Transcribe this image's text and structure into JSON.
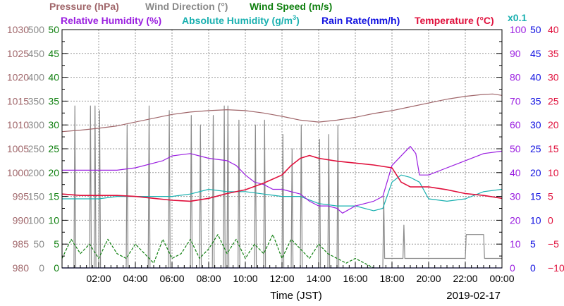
{
  "chart_data": {
    "type": "line",
    "date": "2019-02-17",
    "xlabel": "Time (JST)",
    "x_ticks": [
      "02:00",
      "04:00",
      "06:00",
      "08:00",
      "10:00",
      "12:00",
      "14:00",
      "16:00",
      "18:00",
      "20:00",
      "22:00",
      "00:00"
    ],
    "grid": true,
    "legend": {
      "row1": [
        {
          "text": "Pressure (hPa)",
          "color": "#a0666a"
        },
        {
          "text": "Wind Direction (°)",
          "color": "#8a8a8a"
        },
        {
          "text": "Wind Speed (m/s)",
          "color": "#108010"
        }
      ],
      "row2": [
        {
          "text": "Relative Humidity (%)",
          "color": "#9a1ee0"
        },
        {
          "text": "Absolute Humidity (g/m",
          "sup": "3",
          "tail": ")",
          "color": "#1ab0b0"
        },
        {
          "text": "Rain Rate(mm/h)",
          "color": "#1010e0"
        },
        {
          "text": "Temperature (°C)",
          "color": "#e0103c"
        },
        {
          "text": "x0.1",
          "color": "#1ab0b0"
        }
      ]
    },
    "axes": {
      "pressure": {
        "name": "Pressure (hPa)",
        "color": "#a0666a",
        "range": [
          980,
          1030
        ],
        "ticks": [
          "1030",
          "1025",
          "1020",
          "1015",
          "1010",
          "1005",
          "1000",
          "995",
          "990",
          "985",
          "980"
        ]
      },
      "wind_direction": {
        "name": "Wind Direction (°)",
        "color": "#8a8a8a",
        "range": [
          0,
          500
        ],
        "ticks": [
          "500",
          "450",
          "400",
          "350",
          "300",
          "250",
          "200",
          "150",
          "100",
          "50",
          "0"
        ]
      },
      "wind_speed": {
        "name": "Wind Speed (m/s)",
        "color": "#108010",
        "range": [
          0,
          50
        ],
        "ticks": [
          "50",
          "45",
          "40",
          "35",
          "30",
          "25",
          "20",
          "15",
          "10",
          "5",
          "0"
        ]
      },
      "relative_humidity": {
        "name": "Relative Humidity (%)",
        "color": "#9a1ee0",
        "range": [
          0,
          100
        ],
        "ticks": [
          "100",
          "90",
          "80",
          "70",
          "60",
          "50",
          "40",
          "30",
          "20",
          "10",
          "0"
        ]
      },
      "rain_rate": {
        "name": "Rain Rate(mm/h)",
        "color": "#1010e0",
        "range": [
          0,
          50
        ],
        "ticks": [
          "50",
          "45",
          "40",
          "35",
          "30",
          "25",
          "20",
          "15",
          "10",
          "5",
          "0"
        ]
      },
      "temperature": {
        "name": "Temperature (°C)",
        "color": "#e0103c",
        "range": [
          -10,
          40
        ],
        "ticks": [
          "40",
          "35",
          "30",
          "25",
          "20",
          "15",
          "10",
          "5",
          "0",
          "−5",
          "−10"
        ]
      }
    },
    "x_range_hours": [
      0,
      24
    ],
    "series": [
      {
        "name": "Pressure (hPa)",
        "color": "#a0666a",
        "axis": "pressure",
        "x": [
          0,
          1,
          2,
          3,
          4,
          5,
          6,
          7,
          8,
          9,
          10,
          11,
          12,
          13,
          14,
          15,
          16,
          17,
          18,
          19,
          20,
          21,
          22,
          23,
          23.5,
          24
        ],
        "y": [
          1008.6,
          1008.9,
          1009.3,
          1009.8,
          1010.6,
          1011.4,
          1012.2,
          1012.7,
          1013.0,
          1013.2,
          1013.0,
          1012.5,
          1011.8,
          1011.0,
          1010.6,
          1011.0,
          1011.6,
          1012.4,
          1013.0,
          1013.8,
          1014.6,
          1015.4,
          1016.0,
          1016.4,
          1016.5,
          1016.2
        ]
      },
      {
        "name": "Relative Humidity (%)",
        "color": "#9a1ee0",
        "axis": "relative_humidity",
        "x": [
          0,
          1,
          2,
          3,
          4,
          5,
          5.5,
          6,
          7,
          8,
          9,
          9.5,
          10,
          10.5,
          11,
          11.5,
          12,
          13,
          13.5,
          14,
          14.5,
          15,
          15.3,
          16,
          17,
          17.5,
          18,
          18.5,
          19,
          19.3,
          19.5,
          20,
          21,
          22,
          23,
          24
        ],
        "y": [
          41,
          41,
          41,
          41,
          42,
          44,
          45,
          47,
          48,
          46,
          45,
          43,
          39,
          36,
          35,
          33,
          33,
          31,
          28,
          26,
          26,
          25,
          23,
          26,
          28,
          30,
          43,
          47,
          51,
          48,
          39,
          39,
          42,
          45,
          48,
          49
        ]
      },
      {
        "name": "Absolute Humidity (g/m3) x0.1",
        "color": "#1ab0b0",
        "axis": "relative_humidity",
        "x": [
          0,
          1,
          2,
          3,
          4,
          5,
          6,
          7,
          8,
          9,
          10,
          11,
          12,
          13,
          14,
          15,
          16,
          17,
          17.5,
          18,
          18.5,
          19,
          19.5,
          20,
          21,
          22,
          23,
          24
        ],
        "y": [
          29,
          29,
          29,
          30,
          30,
          30,
          30,
          31,
          33,
          32,
          32,
          31,
          30,
          30,
          27,
          26,
          26,
          24,
          25,
          36,
          39,
          38,
          36,
          29,
          28,
          29,
          32,
          33
        ]
      },
      {
        "name": "Temperature (°C)",
        "color": "#e0103c",
        "axis": "temperature",
        "x": [
          0,
          1,
          2,
          3,
          4,
          5,
          6,
          7,
          8,
          9,
          10,
          11,
          12,
          12.5,
          13,
          13.5,
          14,
          15,
          16,
          17,
          18,
          18.5,
          19,
          20,
          21,
          22,
          23,
          24
        ],
        "y": [
          5.5,
          5.2,
          5.2,
          5.2,
          5.0,
          4.6,
          4.2,
          4.0,
          4.6,
          5.6,
          6.4,
          7.8,
          9.5,
          11.5,
          13.0,
          13.6,
          13.0,
          12.4,
          12.0,
          11.6,
          11.0,
          8.0,
          7.0,
          7.0,
          6.4,
          5.6,
          5.2,
          4.6
        ]
      },
      {
        "name": "Wind Speed (m/s)",
        "color": "#108010",
        "axis": "wind_speed",
        "x": [
          0,
          0.5,
          1,
          1.5,
          2,
          2.5,
          3,
          3.5,
          4,
          4.5,
          5,
          5.5,
          6,
          6.5,
          7,
          7.5,
          8,
          8.5,
          9,
          9.5,
          10,
          10.5,
          11,
          11.5,
          12,
          12.5,
          13,
          13.5,
          14,
          14.5,
          15,
          15.5,
          16,
          16.5,
          17
        ],
        "y": [
          2,
          6,
          3,
          5,
          2,
          6,
          3,
          2,
          5,
          3,
          1,
          6,
          2,
          3,
          6,
          2,
          4,
          7,
          3,
          6,
          2,
          5,
          3,
          7,
          2,
          6,
          4,
          2,
          5,
          3,
          2,
          1,
          2,
          1,
          0
        ]
      },
      {
        "name": "Wind Direction (°)",
        "color": "#8a8a8a",
        "axis": "wind_direction",
        "x": [
          0,
          0.65,
          0.7,
          0.75,
          1.5,
          1.55,
          1.6,
          1.75,
          1.8,
          1.85,
          2.0,
          2.05,
          2.1,
          3.5,
          3.55,
          3.6,
          4.7,
          4.75,
          4.8,
          5.8,
          5.85,
          5.9,
          7.0,
          7.05,
          7.1,
          7.5,
          7.55,
          7.6,
          8.2,
          8.25,
          8.3,
          8.8,
          8.85,
          8.9,
          9.0,
          9.05,
          9.1,
          9.6,
          9.65,
          9.7,
          10.5,
          10.55,
          10.6,
          11.0,
          11.05,
          11.1,
          12.0,
          12.05,
          12.1,
          12.5,
          12.55,
          12.6,
          13.0,
          13.05,
          13.1,
          14.0,
          14.05,
          14.1,
          14.5,
          14.55,
          14.6,
          15.0,
          15.05,
          15.1,
          16.0,
          17.0,
          17.5,
          17.55,
          17.6,
          18.6,
          18.65,
          18.7,
          19.5,
          20.0,
          21.0,
          22.0,
          22.05,
          23.0,
          23.05,
          24.0
        ],
        "y": [
          0,
          0,
          340,
          0,
          0,
          340,
          0,
          0,
          340,
          0,
          0,
          330,
          0,
          0,
          300,
          0,
          0,
          340,
          0,
          0,
          330,
          0,
          0,
          320,
          0,
          0,
          300,
          0,
          0,
          320,
          0,
          0,
          340,
          0,
          0,
          340,
          0,
          0,
          310,
          0,
          0,
          300,
          0,
          0,
          310,
          0,
          0,
          280,
          0,
          0,
          250,
          0,
          0,
          300,
          0,
          0,
          270,
          0,
          0,
          280,
          0,
          0,
          300,
          0,
          0,
          0,
          0,
          150,
          20,
          20,
          90,
          20,
          20,
          20,
          20,
          20,
          70,
          70,
          20,
          20
        ]
      },
      {
        "name": "Rain Rate(mm/h)",
        "color": "#1010e0",
        "axis": "rain_rate",
        "x": [
          0,
          24
        ],
        "y": [
          0,
          0
        ]
      }
    ]
  }
}
